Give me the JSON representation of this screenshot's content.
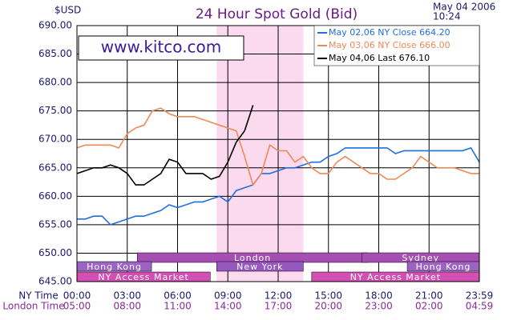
{
  "chart_data": {
    "type": "line",
    "title": "24 Hour Spot Gold (Bid)",
    "y_unit": "$USD",
    "date": "May 04 2006",
    "time": "10:24",
    "watermark": "www.kitco.com",
    "x_label": "NY Time",
    "x2_label": "London Time",
    "x": [
      0,
      0.5,
      1,
      1.5,
      2,
      2.5,
      3,
      3.5,
      4,
      4.5,
      5,
      5.5,
      6,
      6.5,
      7,
      7.5,
      8,
      8.5,
      9,
      9.5,
      10,
      10.5,
      11,
      11.5,
      12,
      12.5,
      13,
      13.5,
      14,
      14.5,
      15,
      15.5,
      16,
      16.5,
      17,
      17.5,
      18,
      18.5,
      19,
      19.5,
      20,
      20.5,
      21,
      21.5,
      22,
      22.5,
      23,
      23.5,
      24
    ],
    "series": [
      {
        "name": "May 02,06 NY Close 664.20",
        "color": "#1f6fe0",
        "values": [
          656,
          656,
          656.5,
          656.5,
          655,
          655.5,
          656,
          656.5,
          656.5,
          657,
          657.5,
          658.5,
          658,
          658.5,
          659,
          659,
          659.5,
          660,
          659,
          661,
          661.5,
          662,
          664,
          664,
          664.5,
          665,
          665,
          665.5,
          666,
          666,
          667,
          667.5,
          668.5,
          668.5,
          668.5,
          668.5,
          668.5,
          668.5,
          667.5,
          668,
          668,
          668,
          668,
          668,
          668,
          668,
          668,
          668.5,
          666
        ]
      },
      {
        "name": "May 03,06 NY Close 666.00",
        "color": "#ee8a55",
        "values": [
          668.5,
          669,
          669,
          669,
          669,
          668.5,
          671,
          672,
          672.5,
          675,
          675.5,
          674.5,
          674,
          674,
          674,
          673.5,
          673,
          672.5,
          672,
          671.5,
          667,
          662,
          664,
          669,
          668,
          668,
          666,
          667,
          665,
          664,
          664,
          666,
          667,
          666,
          665,
          664,
          664,
          663,
          663,
          664,
          665,
          667,
          666,
          665,
          665,
          665,
          664.5,
          664,
          664
        ]
      },
      {
        "name": "May 04,06 Last 676.10",
        "color": "#000000",
        "values": [
          664,
          664.5,
          665,
          665,
          665.5,
          665,
          664,
          662,
          662,
          663,
          664,
          666.5,
          666,
          664,
          664,
          664,
          663,
          663.5,
          666,
          669.5,
          671.5,
          676,
          null,
          null,
          null,
          null,
          null,
          null,
          null,
          null,
          null,
          null,
          null,
          null,
          null,
          null,
          null,
          null,
          null,
          null,
          null,
          null,
          null,
          null,
          null,
          null,
          null,
          null,
          null
        ]
      }
    ],
    "xlim": [
      0,
      24
    ],
    "xticks": [
      {
        "value": 0,
        "label": "00:00"
      },
      {
        "value": 3,
        "label": "03:00"
      },
      {
        "value": 6,
        "label": "06:00"
      },
      {
        "value": 9,
        "label": "09:00"
      },
      {
        "value": 12,
        "label": "12:00"
      },
      {
        "value": 15,
        "label": "15:00"
      },
      {
        "value": 18,
        "label": "18:00"
      },
      {
        "value": 21,
        "label": "21:00"
      },
      {
        "value": 24,
        "label": "23:59"
      }
    ],
    "london_time_labels": [
      "05:00",
      "08:00",
      "11:00",
      "14:00",
      "17:00",
      "20:00",
      "23:00",
      "02:00",
      "04:59"
    ],
    "ylim": [
      645,
      690
    ],
    "yticks": [
      {
        "value": 645,
        "label": "645.00"
      },
      {
        "value": 650,
        "label": "650.00"
      },
      {
        "value": 655,
        "label": "655.00"
      },
      {
        "value": 660,
        "label": "660.00"
      },
      {
        "value": 665,
        "label": "665.00"
      },
      {
        "value": 670,
        "label": "670.00"
      },
      {
        "value": 675,
        "label": "675.00"
      },
      {
        "value": 680,
        "label": "680.00"
      },
      {
        "value": 685,
        "label": "685.00"
      },
      {
        "value": 690,
        "label": "690.00"
      }
    ],
    "grid": true,
    "shaded_x_range": [
      8.33,
      13.5
    ],
    "shade_color": "#fbd9ee",
    "market_sessions": [
      {
        "label": "London",
        "start": 3.6,
        "end": 17.35,
        "row": 0,
        "color": "#a64fb3"
      },
      {
        "label": "Sydney",
        "start": 17,
        "end": 24,
        "row": 0,
        "color": "#a64fb3"
      },
      {
        "label": "Hong Kong",
        "start": 0,
        "end": 4.45,
        "row": 1,
        "color": "#9c62c4"
      },
      {
        "label": "New York",
        "start": 8.33,
        "end": 13.5,
        "row": 1,
        "color": "#9558bf"
      },
      {
        "label": "Hong Kong",
        "start": 19.7,
        "end": 24,
        "row": 1,
        "color": "#9c62c4"
      },
      {
        "label": "NY Access Market",
        "start": 0,
        "end": 7.95,
        "row": 2,
        "color": "#d24fb3"
      },
      {
        "label": "NY Access Market",
        "start": 14,
        "end": 24,
        "row": 2,
        "color": "#d24fb3"
      }
    ]
  }
}
